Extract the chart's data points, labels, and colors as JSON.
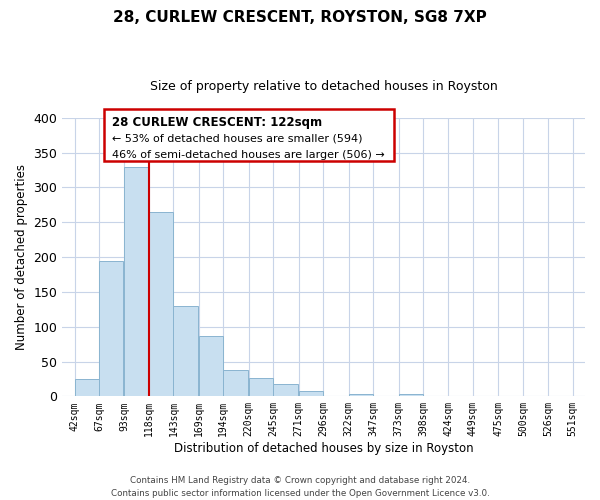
{
  "title": "28, CURLEW CRESCENT, ROYSTON, SG8 7XP",
  "subtitle": "Size of property relative to detached houses in Royston",
  "xlabel": "Distribution of detached houses by size in Royston",
  "ylabel": "Number of detached properties",
  "bar_color": "#c8dff0",
  "bar_edge_color": "#8ab4d0",
  "background_color": "#ffffff",
  "grid_color": "#c8d4e8",
  "bin_labels": [
    "42sqm",
    "67sqm",
    "93sqm",
    "118sqm",
    "143sqm",
    "169sqm",
    "194sqm",
    "220sqm",
    "245sqm",
    "271sqm",
    "296sqm",
    "322sqm",
    "347sqm",
    "373sqm",
    "398sqm",
    "424sqm",
    "449sqm",
    "475sqm",
    "500sqm",
    "526sqm",
    "551sqm"
  ],
  "bin_edges": [
    42,
    67,
    93,
    118,
    143,
    169,
    194,
    220,
    245,
    271,
    296,
    322,
    347,
    373,
    398,
    424,
    449,
    475,
    500,
    526,
    551
  ],
  "bar_heights": [
    25,
    194,
    330,
    265,
    130,
    86,
    38,
    26,
    17,
    8,
    0,
    4,
    0,
    4,
    0,
    0,
    0,
    0,
    0,
    0
  ],
  "ylim": [
    0,
    400
  ],
  "yticks": [
    0,
    50,
    100,
    150,
    200,
    250,
    300,
    350,
    400
  ],
  "vline_x": 118,
  "vline_color": "#cc0000",
  "annotation_title": "28 CURLEW CRESCENT: 122sqm",
  "annotation_line1": "← 53% of detached houses are smaller (594)",
  "annotation_line2": "46% of semi-detached houses are larger (506) →",
  "footer_line1": "Contains HM Land Registry data © Crown copyright and database right 2024.",
  "footer_line2": "Contains public sector information licensed under the Open Government Licence v3.0."
}
